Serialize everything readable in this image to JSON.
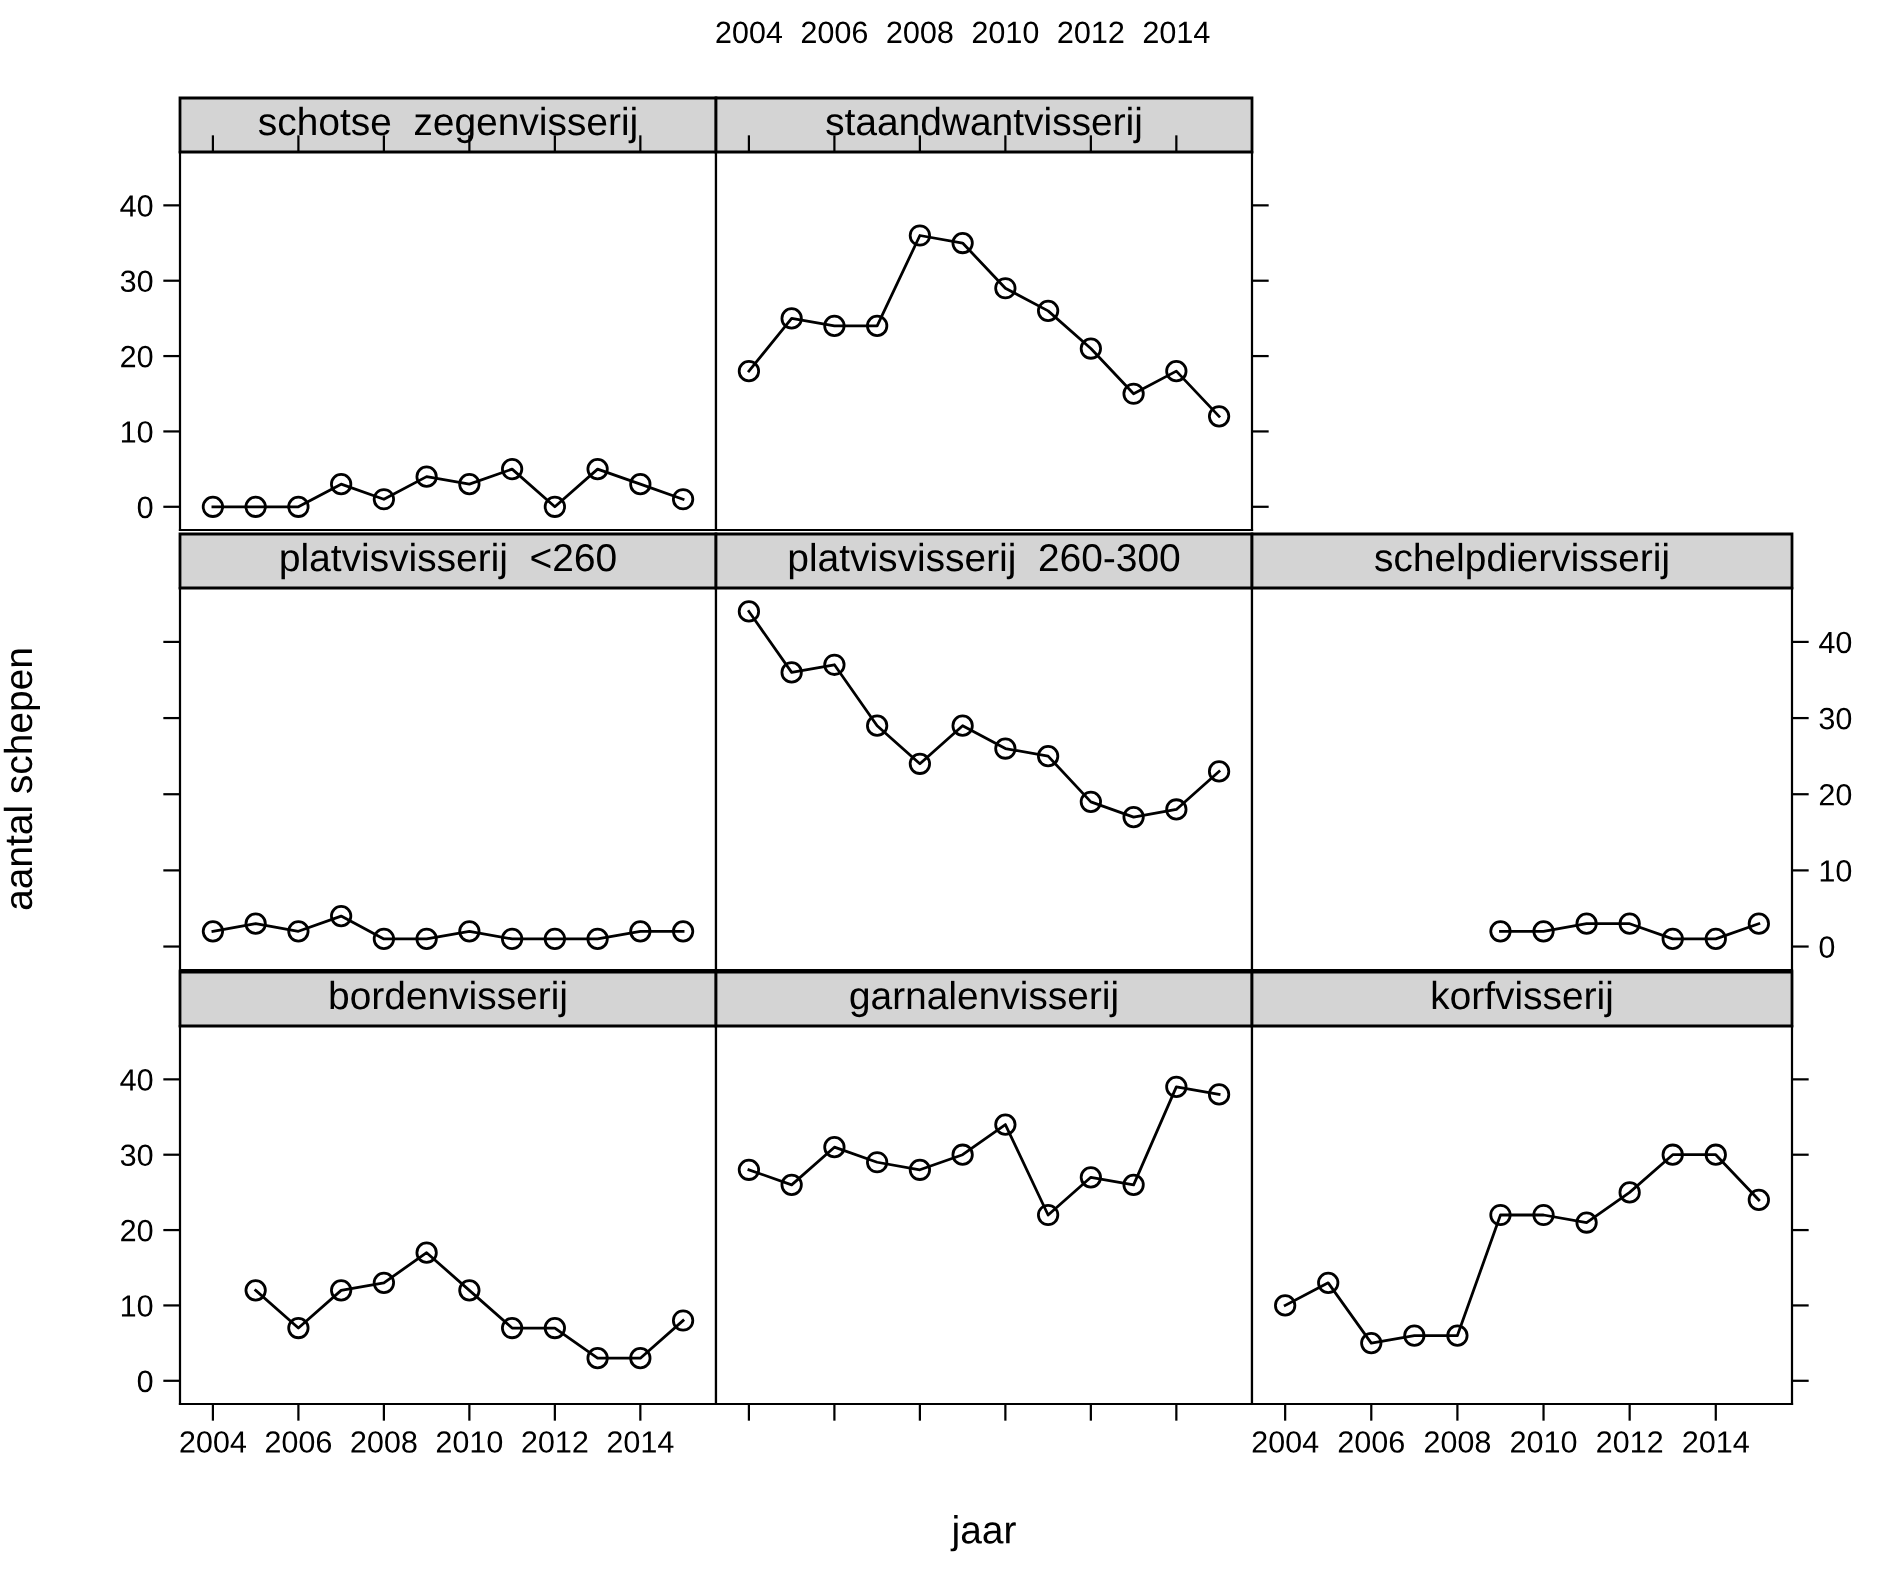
{
  "chart_data": [
    {
      "type": "line",
      "title": "schotse  zegenvisserij",
      "x": [
        2004,
        2005,
        2006,
        2007,
        2008,
        2009,
        2010,
        2011,
        2012,
        2013,
        2014,
        2015
      ],
      "values": [
        0,
        0,
        0,
        3,
        1,
        4,
        3,
        5,
        0,
        5,
        3,
        1
      ],
      "color": "#000000",
      "marker": "circle",
      "xlim": [
        2003.23,
        2015.77
      ],
      "ylim": [
        -3.08,
        47.08
      ],
      "xticks": [
        2004,
        2006,
        2008,
        2010,
        2012,
        2014
      ],
      "yticks": [
        0,
        10,
        20,
        30,
        40
      ],
      "tick_labels": "y"
    },
    {
      "type": "line",
      "title": "staandwantvisserij",
      "x": [
        2004,
        2005,
        2006,
        2007,
        2008,
        2009,
        2010,
        2011,
        2012,
        2013,
        2014,
        2015
      ],
      "values": [
        18,
        25,
        24,
        24,
        36,
        35,
        29,
        26,
        21,
        15,
        18,
        12
      ],
      "color": "#000000",
      "marker": "circle",
      "xlim": [
        2003.23,
        2015.77
      ],
      "ylim": [
        -3.08,
        47.08
      ],
      "xticks": [
        2004,
        2006,
        2008,
        2010,
        2012,
        2014
      ],
      "yticks": [
        0,
        10,
        20,
        30,
        40
      ],
      "tick_labels": "x"
    },
    {
      "type": "line",
      "title": "platvisvisserij  <260",
      "ylabel": "aantal schepen",
      "x": [
        2004,
        2005,
        2006,
        2007,
        2008,
        2009,
        2010,
        2011,
        2012,
        2013,
        2014,
        2015
      ],
      "values": [
        2,
        3,
        2,
        4,
        1,
        1,
        2,
        1,
        1,
        1,
        2,
        2
      ],
      "color": "#000000",
      "marker": "circle",
      "xlim": [
        2003.23,
        2015.77
      ],
      "ylim": [
        -3.08,
        47.08
      ],
      "xticks": [
        2004,
        2006,
        2008,
        2010,
        2012,
        2014
      ],
      "yticks": [
        0,
        10,
        20,
        30,
        40
      ],
      "tick_labels": false
    },
    {
      "type": "line",
      "title": "platvisvisserij  260-300",
      "x": [
        2004,
        2005,
        2006,
        2007,
        2008,
        2009,
        2010,
        2011,
        2012,
        2013,
        2014,
        2015
      ],
      "values": [
        44,
        36,
        37,
        29,
        24,
        29,
        26,
        25,
        19,
        17,
        18,
        23
      ],
      "color": "#000000",
      "marker": "circle",
      "xlim": [
        2003.23,
        2015.77
      ],
      "ylim": [
        -3.08,
        47.08
      ],
      "xticks": [
        2004,
        2006,
        2008,
        2010,
        2012,
        2014
      ],
      "yticks": [
        0,
        10,
        20,
        30,
        40
      ],
      "tick_labels": false
    },
    {
      "type": "line",
      "title": "schelpdiervisserij",
      "x": [
        2009,
        2010,
        2011,
        2012,
        2013,
        2014,
        2015
      ],
      "values": [
        2,
        2,
        3,
        3,
        1,
        1,
        3
      ],
      "color": "#000000",
      "marker": "circle",
      "xlim": [
        2003.23,
        2015.77
      ],
      "ylim": [
        -3.08,
        47.08
      ],
      "xticks": [
        2004,
        2006,
        2008,
        2010,
        2012,
        2014
      ],
      "yticks": [
        0,
        10,
        20,
        30,
        40
      ],
      "tick_labels": "y"
    },
    {
      "type": "line",
      "title": "bordenvisserij",
      "x": [
        2005,
        2006,
        2007,
        2008,
        2009,
        2010,
        2011,
        2012,
        2013,
        2014,
        2015
      ],
      "values": [
        12,
        7,
        12,
        13,
        17,
        12,
        7,
        7,
        3,
        3,
        8
      ],
      "color": "#000000",
      "marker": "circle",
      "xlim": [
        2003.23,
        2015.77
      ],
      "ylim": [
        -3.08,
        47.08
      ],
      "xticks": [
        2004,
        2006,
        2008,
        2010,
        2012,
        2014
      ],
      "yticks": [
        0,
        10,
        20,
        30,
        40
      ]
    },
    {
      "type": "line",
      "title": "garnalenvisserij",
      "xlabel": "jaar",
      "x": [
        2004,
        2005,
        2006,
        2007,
        2008,
        2009,
        2010,
        2011,
        2012,
        2013,
        2014,
        2015
      ],
      "values": [
        28,
        26,
        31,
        29,
        28,
        30,
        34,
        22,
        27,
        26,
        39,
        38
      ],
      "color": "#000000",
      "marker": "circle",
      "xlim": [
        2003.23,
        2015.77
      ],
      "ylim": [
        -3.08,
        47.08
      ],
      "xticks": [
        2004,
        2006,
        2008,
        2010,
        2012,
        2014
      ],
      "yticks": [
        0,
        10,
        20,
        30,
        40
      ],
      "tick_labels": false
    },
    {
      "type": "line",
      "title": "korfvisserij",
      "x": [
        2004,
        2005,
        2006,
        2007,
        2008,
        2009,
        2010,
        2011,
        2012,
        2013,
        2014,
        2015
      ],
      "values": [
        10,
        13,
        5,
        6,
        6,
        22,
        22,
        21,
        25,
        30,
        30,
        24
      ],
      "color": "#000000",
      "marker": "circle",
      "xlim": [
        2003.23,
        2015.77
      ],
      "ylim": [
        -3.08,
        47.08
      ],
      "xticks": [
        2004,
        2006,
        2008,
        2010,
        2012,
        2014
      ],
      "yticks": [
        0,
        10,
        20,
        30,
        40
      ],
      "tick_labels": "x"
    }
  ]
}
